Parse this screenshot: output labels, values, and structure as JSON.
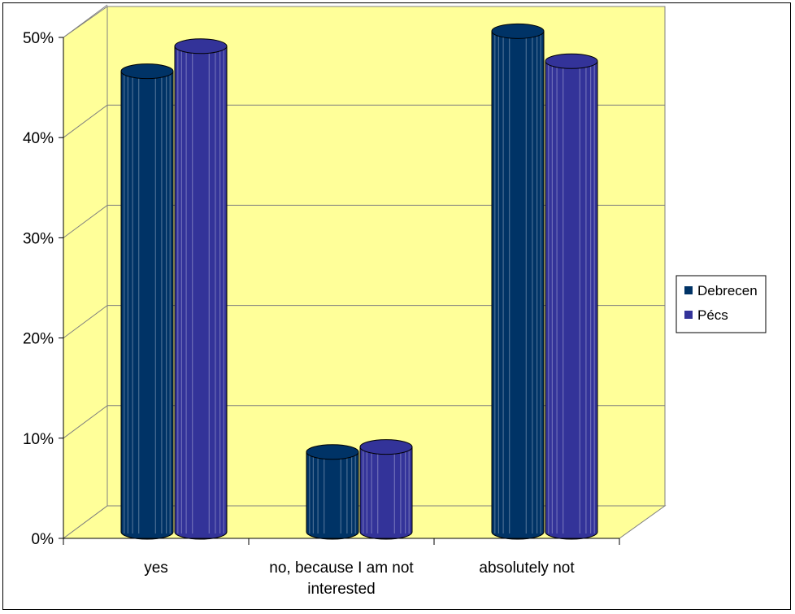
{
  "chart_data": {
    "type": "bar",
    "title": "",
    "xlabel": "",
    "ylabel": "",
    "categories": [
      "yes",
      "no, because I am not interested",
      "absolutely not"
    ],
    "category_lines": [
      [
        "yes"
      ],
      [
        "no, because I am not",
        "interested"
      ],
      [
        "absolutely not"
      ]
    ],
    "series": [
      {
        "name": "Debrecen",
        "values": [
          45,
          7,
          49
        ],
        "color": "#003366"
      },
      {
        "name": "Pécs",
        "values": [
          47.5,
          7.5,
          46
        ],
        "color": "#333399"
      }
    ],
    "ylim": [
      0,
      50
    ],
    "y_ticks": [
      "0%",
      "10%",
      "20%",
      "30%",
      "40%",
      "50%"
    ],
    "grid": true,
    "legend_position": "right",
    "wall_color": "#ffff99"
  }
}
